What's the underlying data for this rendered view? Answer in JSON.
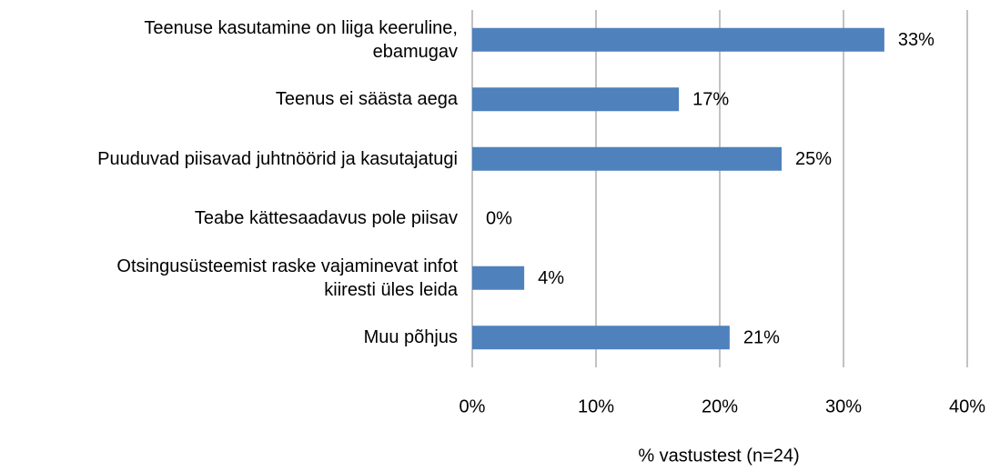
{
  "chart_data": {
    "type": "barh",
    "categories": [
      "Teenuse kasutamine on liiga keeruline,\nebamugav",
      "Teenus ei säästa aega",
      "Puuduvad piisavad juhtnöörid ja kasutajatugi",
      "Teabe kättesaadavus pole piisav",
      "Otsingusüsteemist raske vajaminevat infot\nkiiresti üles leida",
      "Muu põhjus"
    ],
    "values": [
      33.3,
      16.7,
      25,
      0,
      4.2,
      20.8
    ],
    "value_labels": [
      "33%",
      "17%",
      "25%",
      "0%",
      "4%",
      "21%"
    ],
    "color": "#4f81bd",
    "xlabel": "% vastustest (n=24)",
    "xlim": [
      0,
      40
    ],
    "xticks": [
      {
        "value": 0,
        "label": "0%"
      },
      {
        "value": 10,
        "label": "10%"
      },
      {
        "value": 20,
        "label": "20%"
      },
      {
        "value": 30,
        "label": "30%"
      },
      {
        "value": 40,
        "label": "40%"
      }
    ],
    "grid": true
  }
}
